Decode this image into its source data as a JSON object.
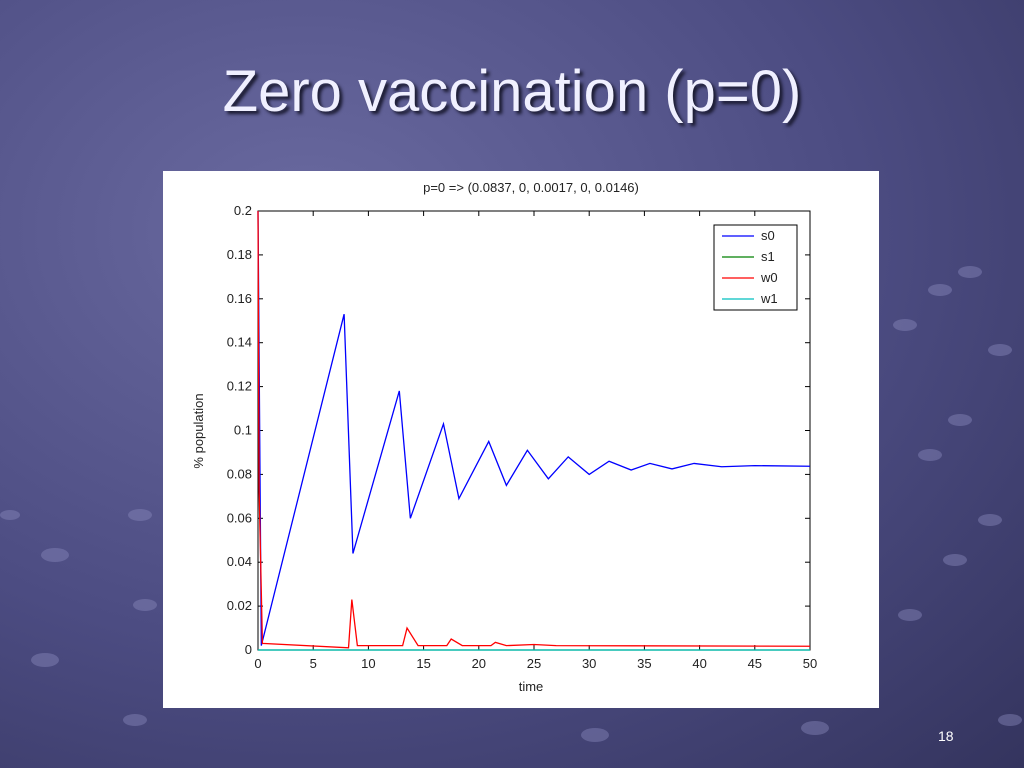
{
  "slide": {
    "title": "Zero vaccination (p=0)",
    "number": "18"
  },
  "chart_data": {
    "type": "line",
    "title": "p=0 => (0.0837, 0, 0.0017, 0, 0.0146)",
    "xlabel": "time",
    "ylabel": "% population",
    "xlim": [
      0,
      50
    ],
    "ylim": [
      0,
      0.2
    ],
    "xticks": [
      0,
      5,
      10,
      15,
      20,
      25,
      30,
      35,
      40,
      45,
      50
    ],
    "yticks": [
      0,
      0.02,
      0.04,
      0.06,
      0.08,
      0.1,
      0.12,
      0.14,
      0.16,
      0.18,
      0.2
    ],
    "legend": "upper right",
    "series": [
      {
        "name": "s0",
        "color": "#0000ff",
        "x": [
          0,
          0.3,
          7.8,
          8.6,
          12.8,
          13.8,
          16.8,
          18.2,
          20.9,
          22.5,
          24.4,
          26.3,
          28.1,
          30,
          31.8,
          33.8,
          35.5,
          37.5,
          39.5,
          42,
          45,
          50
        ],
        "values": [
          0.2,
          0.002,
          0.153,
          0.044,
          0.118,
          0.06,
          0.103,
          0.069,
          0.095,
          0.075,
          0.091,
          0.078,
          0.088,
          0.08,
          0.086,
          0.082,
          0.085,
          0.0825,
          0.085,
          0.0835,
          0.084,
          0.0837
        ]
      },
      {
        "name": "s1",
        "color": "#008000",
        "x": [
          0,
          50
        ],
        "values": [
          0,
          0
        ]
      },
      {
        "name": "w0",
        "color": "#ff0000",
        "x": [
          0,
          0.1,
          0.4,
          8.2,
          8.5,
          9,
          13.1,
          13.5,
          14.5,
          17.1,
          17.5,
          18.5,
          21.1,
          21.5,
          22.5,
          25,
          27,
          50
        ],
        "values": [
          0.2,
          0.073,
          0.003,
          0.001,
          0.023,
          0.002,
          0.002,
          0.01,
          0.002,
          0.002,
          0.005,
          0.002,
          0.002,
          0.0035,
          0.002,
          0.0025,
          0.002,
          0.0017
        ]
      },
      {
        "name": "w1",
        "color": "#00bfbf",
        "x": [
          0,
          50
        ],
        "values": [
          0,
          0
        ]
      }
    ]
  }
}
